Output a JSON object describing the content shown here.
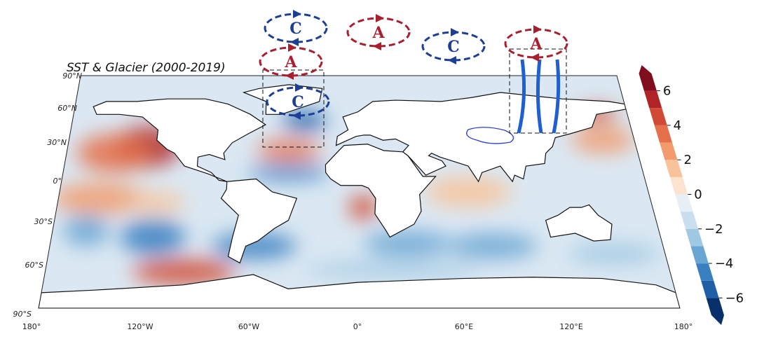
{
  "title": "SST & Glacier (2000-2019)",
  "lat_labels": [
    "90°N",
    "60°N",
    "30°N",
    "0°",
    "30°S",
    "60°S",
    "90°S"
  ],
  "lon_labels": [
    "180°",
    "120°W",
    "60°W",
    "0°",
    "60°E",
    "120°E",
    "180°"
  ],
  "colorbar": {
    "clim": [
      -7,
      7
    ],
    "ticks": [
      6,
      4,
      2,
      0,
      {
        "value": -2,
        "label": "−2"
      },
      {
        "value": -4,
        "label": "−4"
      },
      {
        "value": -6,
        "label": "−6"
      }
    ],
    "colors": [
      "#08306b",
      "#1f5fa8",
      "#3a7fc0",
      "#6aa6d3",
      "#9fc8e3",
      "#c9dfef",
      "#e6eef6",
      "#fbe3cf",
      "#f8c39a",
      "#f29b6c",
      "#e5704a",
      "#d04a34",
      "#b02428",
      "#7f0d1d"
    ]
  },
  "circulation_cells": [
    {
      "label": "C",
      "color": "#1c3f94"
    },
    {
      "label": "A",
      "color": "#a8202f"
    },
    {
      "label": "C",
      "color": "#1c3f94"
    },
    {
      "label": "A",
      "color": "#a8202f"
    },
    {
      "label": "A",
      "color": "#a8202f"
    },
    {
      "label": "C",
      "color": "#1c3f94"
    }
  ]
}
